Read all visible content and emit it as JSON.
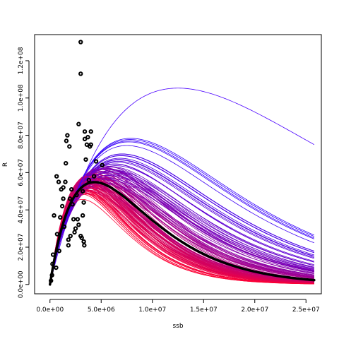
{
  "chart_data": {
    "type": "scatter",
    "xlabel": "ssb",
    "ylabel": "R",
    "xlim": [
      -1500000,
      26500000
    ],
    "ylim": [
      -5000000,
      134000000
    ],
    "x_ticks": [
      0,
      5000000,
      10000000,
      15000000,
      20000000,
      25000000
    ],
    "x_tick_labels": [
      "0.0e+00",
      "5.0e+06",
      "1.0e+07",
      "1.5e+07",
      "2.0e+07",
      "2.5e+07"
    ],
    "y_ticks": [
      0,
      20000000,
      40000000,
      60000000,
      80000000,
      100000000,
      120000000
    ],
    "y_tick_labels": [
      "0.0e+00",
      "2.0e+07",
      "4.0e+07",
      "6.0e+07",
      "8.0e+07",
      "1.0e+08",
      "1.2e+08"
    ],
    "grid": false,
    "observations": {
      "marker": "open-circle",
      "color": "#000000",
      "points": [
        [
          100000,
          2000000
        ],
        [
          200000,
          5000000
        ],
        [
          250000,
          11000000
        ],
        [
          300000,
          16000000
        ],
        [
          400000,
          37000000
        ],
        [
          600000,
          9000000
        ],
        [
          650000,
          58000000
        ],
        [
          700000,
          27000000
        ],
        [
          850000,
          55000000
        ],
        [
          900000,
          18000000
        ],
        [
          1000000,
          36000000
        ],
        [
          1100000,
          51000000
        ],
        [
          1200000,
          42000000
        ],
        [
          1300000,
          52000000
        ],
        [
          1300000,
          46000000
        ],
        [
          1400000,
          31000000
        ],
        [
          1500000,
          55000000
        ],
        [
          1550000,
          65000000
        ],
        [
          1600000,
          77000000
        ],
        [
          1700000,
          80000000
        ],
        [
          1800000,
          21000000
        ],
        [
          1800000,
          24000000
        ],
        [
          1900000,
          74000000
        ],
        [
          1950000,
          46000000
        ],
        [
          2000000,
          26000000
        ],
        [
          2100000,
          51000000
        ],
        [
          2200000,
          43000000
        ],
        [
          2300000,
          35000000
        ],
        [
          2400000,
          28000000
        ],
        [
          2500000,
          30000000
        ],
        [
          2600000,
          48000000
        ],
        [
          2700000,
          35000000
        ],
        [
          2800000,
          32000000
        ],
        [
          2800000,
          86000000
        ],
        [
          3000000,
          26000000
        ],
        [
          3000000,
          113000000
        ],
        [
          3000000,
          130000000
        ],
        [
          3100000,
          25000000
        ],
        [
          3200000,
          37000000
        ],
        [
          3200000,
          50000000
        ],
        [
          3300000,
          44000000
        ],
        [
          3300000,
          23000000
        ],
        [
          3350000,
          21000000
        ],
        [
          3400000,
          78000000
        ],
        [
          3400000,
          82000000
        ],
        [
          3500000,
          67000000
        ],
        [
          3600000,
          75000000
        ],
        [
          3700000,
          79000000
        ],
        [
          3800000,
          56000000
        ],
        [
          3900000,
          74000000
        ],
        [
          4000000,
          75000000
        ],
        [
          4000000,
          82000000
        ],
        [
          4300000,
          58000000
        ],
        [
          4500000,
          66000000
        ],
        [
          5100000,
          64000000
        ]
      ]
    },
    "fit": {
      "name": "",
      "color": "#000000",
      "model": "ricker",
      "a": 34.32,
      "b": 2.3e-07
    },
    "bootstrap_fits": {
      "count": 120,
      "model": "ricker",
      "color_low": "#ff0033",
      "color_high": "#3300ff",
      "a_range": [
        27,
        42
      ],
      "b_range": [
        1.25e-07,
        3.2e-07
      ],
      "outlier": {
        "a": 22.9,
        "b": 8e-08,
        "color": "#4a00ff"
      }
    }
  }
}
